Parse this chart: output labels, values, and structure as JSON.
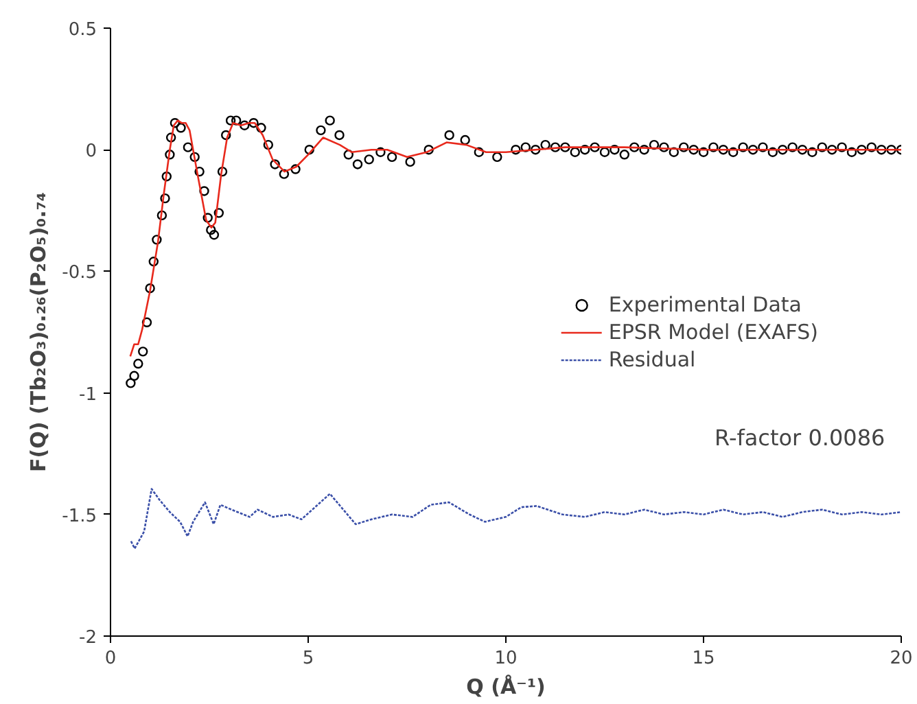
{
  "chart_data": {
    "type": "scatter",
    "xlabel": "Q (Å⁻¹)",
    "ylabel": "F(Q) (Tb₂O₃)₀.₂₆(P₂O₅)₀.₇₄",
    "xlim": [
      0,
      20
    ],
    "ylim": [
      -2,
      0.5
    ],
    "xticks": [
      0,
      5,
      10,
      15,
      20
    ],
    "yticks": [
      -2,
      -1.5,
      -1,
      -0.5,
      0,
      0.5
    ],
    "grid": false,
    "legend": "right",
    "annotations": [
      "R-factor 0.0086"
    ],
    "series": [
      {
        "name": "Experimental Data",
        "marker": "circle",
        "color": "#000000",
        "x": [
          0.51,
          0.6,
          0.7,
          0.82,
          0.92,
          1.0,
          1.09,
          1.17,
          1.3,
          1.38,
          1.42,
          1.5,
          1.53,
          1.63,
          1.78,
          1.96,
          2.13,
          2.25,
          2.37,
          2.46,
          2.54,
          2.62,
          2.74,
          2.83,
          2.92,
          3.04,
          3.18,
          3.39,
          3.62,
          3.81,
          3.99,
          4.16,
          4.39,
          4.68,
          5.03,
          5.32,
          5.55,
          5.79,
          6.02,
          6.25,
          6.54,
          6.83,
          7.12,
          7.58,
          8.05,
          8.57,
          8.97,
          9.32,
          9.78,
          10.25,
          10.5,
          10.75,
          11.0,
          11.25,
          11.5,
          11.75,
          12.0,
          12.25,
          12.5,
          12.75,
          13.0,
          13.25,
          13.5,
          13.75,
          14.0,
          14.25,
          14.5,
          14.75,
          15.0,
          15.25,
          15.5,
          15.75,
          16.0,
          16.25,
          16.5,
          16.75,
          17.0,
          17.25,
          17.5,
          17.75,
          18.0,
          18.25,
          18.5,
          18.75,
          19.0,
          19.25,
          19.5,
          19.75,
          20.0
        ],
        "values": [
          -0.96,
          -0.93,
          -0.88,
          -0.83,
          -0.71,
          -0.57,
          -0.46,
          -0.37,
          -0.27,
          -0.2,
          -0.11,
          -0.02,
          0.05,
          0.11,
          0.09,
          0.01,
          -0.03,
          -0.09,
          -0.17,
          -0.28,
          -0.33,
          -0.35,
          -0.26,
          -0.09,
          0.06,
          0.12,
          0.12,
          0.1,
          0.11,
          0.09,
          0.02,
          -0.06,
          -0.1,
          -0.08,
          0.0,
          0.08,
          0.12,
          0.06,
          -0.02,
          -0.06,
          -0.04,
          -0.01,
          -0.03,
          -0.05,
          0.0,
          0.06,
          0.04,
          -0.01,
          -0.03,
          0.0,
          0.01,
          0.0,
          0.02,
          0.01,
          0.01,
          -0.01,
          0.0,
          0.01,
          -0.01,
          0.0,
          -0.02,
          0.01,
          0.0,
          0.02,
          0.01,
          -0.01,
          0.01,
          0.0,
          -0.01,
          0.01,
          0.0,
          -0.01,
          0.01,
          0.0,
          0.01,
          -0.01,
          0.0,
          0.01,
          0.0,
          -0.01,
          0.01,
          0.0,
          0.01,
          -0.01,
          0.0,
          0.01,
          0.0,
          0.0,
          0.0
        ]
      },
      {
        "name": "EPSR Model (EXAFS)",
        "type": "line",
        "line_style": "solid",
        "color": "#e8291c",
        "x": [
          0.5,
          0.6,
          0.7,
          0.8,
          1.0,
          1.2,
          1.35,
          1.5,
          1.6,
          1.7,
          1.8,
          1.9,
          2.0,
          2.2,
          2.42,
          2.55,
          2.65,
          2.8,
          2.95,
          3.1,
          3.3,
          3.5,
          3.65,
          3.85,
          4.1,
          4.4,
          4.7,
          5.0,
          5.38,
          5.8,
          6.1,
          6.6,
          7.0,
          7.5,
          8.0,
          8.5,
          9.0,
          9.5,
          10.0,
          11.5,
          13.0,
          15.0,
          17.0,
          20.0
        ],
        "values": [
          -0.85,
          -0.8,
          -0.8,
          -0.74,
          -0.58,
          -0.38,
          -0.18,
          0.0,
          0.1,
          0.12,
          0.11,
          0.11,
          0.08,
          -0.1,
          -0.29,
          -0.32,
          -0.3,
          -0.1,
          0.05,
          0.11,
          0.1,
          0.11,
          0.11,
          0.06,
          -0.04,
          -0.09,
          -0.07,
          -0.02,
          0.05,
          0.02,
          -0.01,
          0.0,
          0.0,
          -0.03,
          -0.01,
          0.03,
          0.02,
          -0.01,
          -0.01,
          0.01,
          0.01,
          0.0,
          0.0,
          0.0
        ]
      },
      {
        "name": "Residual",
        "type": "line",
        "line_style": "dotted",
        "color": "#3a4fa8",
        "x": [
          0.52,
          0.61,
          0.85,
          1.04,
          1.24,
          1.5,
          1.76,
          1.95,
          2.09,
          2.39,
          2.61,
          2.78,
          3.06,
          3.52,
          3.72,
          4.11,
          4.5,
          4.83,
          5.55,
          6.2,
          6.6,
          7.12,
          7.64,
          8.1,
          8.56,
          9.08,
          9.47,
          10.0,
          10.39,
          10.78,
          11.43,
          12.0,
          12.5,
          13.0,
          13.5,
          14.0,
          14.5,
          15.0,
          15.5,
          16.0,
          16.5,
          17.0,
          17.5,
          18.0,
          18.5,
          19.0,
          19.5,
          20.0
        ],
        "values": [
          -1.61,
          -1.64,
          -1.57,
          -1.395,
          -1.44,
          -1.49,
          -1.53,
          -1.59,
          -1.53,
          -1.45,
          -1.54,
          -1.46,
          -1.48,
          -1.51,
          -1.48,
          -1.51,
          -1.5,
          -1.52,
          -1.415,
          -1.54,
          -1.52,
          -1.5,
          -1.51,
          -1.46,
          -1.45,
          -1.5,
          -1.53,
          -1.51,
          -1.47,
          -1.465,
          -1.5,
          -1.51,
          -1.49,
          -1.5,
          -1.48,
          -1.5,
          -1.49,
          -1.5,
          -1.48,
          -1.5,
          -1.49,
          -1.51,
          -1.49,
          -1.48,
          -1.5,
          -1.49,
          -1.5,
          -1.49
        ]
      }
    ]
  }
}
